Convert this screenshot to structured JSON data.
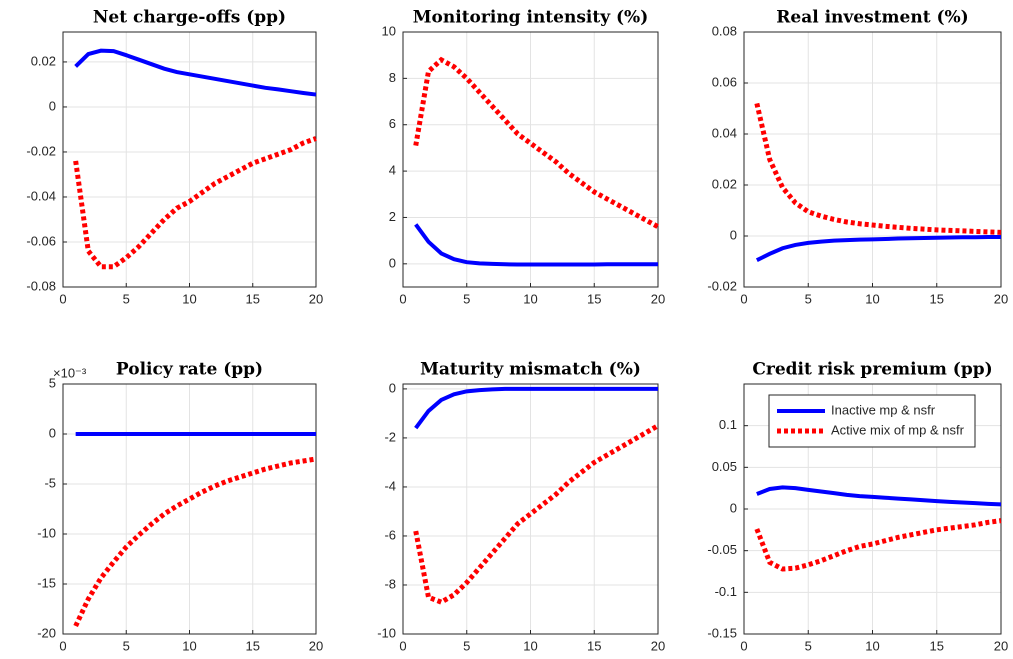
{
  "chart_data": [
    {
      "type": "line",
      "title": "Net charge-offs (pp)",
      "x": [
        1,
        2,
        3,
        4,
        5,
        6,
        7,
        8,
        9,
        10,
        11,
        12,
        13,
        14,
        15,
        16,
        17,
        18,
        19,
        20
      ],
      "series": [
        {
          "color": "#0000ff",
          "style": "solid",
          "values": [
            0.018,
            0.0235,
            0.025,
            0.0248,
            0.023,
            0.021,
            0.019,
            0.017,
            0.0155,
            0.0145,
            0.0135,
            0.0125,
            0.0115,
            0.0105,
            0.0095,
            0.0085,
            0.0078,
            0.007,
            0.0062,
            0.0055
          ]
        },
        {
          "color": "#ff0000",
          "style": "dotted",
          "values": [
            -0.024,
            -0.064,
            -0.071,
            -0.071,
            -0.067,
            -0.062,
            -0.056,
            -0.05,
            -0.045,
            -0.042,
            -0.038,
            -0.034,
            -0.031,
            -0.028,
            -0.025,
            -0.023,
            -0.021,
            -0.019,
            -0.016,
            -0.014
          ]
        }
      ],
      "xlim": [
        0,
        20
      ],
      "xticks": [
        0,
        5,
        10,
        15,
        20
      ],
      "ylim": [
        -0.08,
        0.0333
      ],
      "yticks": [
        -0.08,
        -0.06,
        -0.04,
        -0.02,
        0,
        0.02
      ],
      "grid": true
    },
    {
      "type": "line",
      "title": "Monitoring intensity (%)",
      "x": [
        1,
        2,
        3,
        4,
        5,
        6,
        7,
        8,
        9,
        10,
        11,
        12,
        13,
        14,
        15,
        16,
        17,
        18,
        19,
        20
      ],
      "series": [
        {
          "color": "#0000ff",
          "style": "solid",
          "values": [
            1.7,
            0.95,
            0.45,
            0.2,
            0.07,
            0.02,
            0,
            -0.02,
            -0.03,
            -0.03,
            -0.03,
            -0.03,
            -0.03,
            -0.03,
            -0.03,
            -0.02,
            -0.02,
            -0.02,
            -0.02,
            -0.02
          ]
        },
        {
          "color": "#ff0000",
          "style": "dotted",
          "values": [
            5.1,
            8.3,
            8.8,
            8.5,
            8.0,
            7.4,
            6.8,
            6.2,
            5.6,
            5.2,
            4.8,
            4.4,
            3.9,
            3.5,
            3.1,
            2.8,
            2.5,
            2.2,
            1.9,
            1.6
          ]
        }
      ],
      "xlim": [
        0,
        20
      ],
      "xticks": [
        0,
        5,
        10,
        15,
        20
      ],
      "ylim": [
        -1,
        10
      ],
      "yticks": [
        0,
        2,
        4,
        6,
        8,
        10
      ],
      "grid": true
    },
    {
      "type": "line",
      "title": "Real investment (%)",
      "x": [
        1,
        2,
        3,
        4,
        5,
        6,
        7,
        8,
        9,
        10,
        11,
        12,
        13,
        14,
        15,
        16,
        17,
        18,
        19,
        20
      ],
      "series": [
        {
          "color": "#0000ff",
          "style": "solid",
          "values": [
            -0.0095,
            -0.007,
            -0.0048,
            -0.0035,
            -0.0027,
            -0.0022,
            -0.0018,
            -0.0016,
            -0.0014,
            -0.0013,
            -0.0012,
            -0.001,
            -0.0009,
            -0.0008,
            -0.0007,
            -0.0006,
            -0.0005,
            -0.0005,
            -0.0004,
            -0.0004
          ]
        },
        {
          "color": "#ff0000",
          "style": "dotted",
          "values": [
            0.052,
            0.03,
            0.019,
            0.013,
            0.0095,
            0.0078,
            0.0065,
            0.0055,
            0.0048,
            0.0043,
            0.0038,
            0.0034,
            0.003,
            0.0027,
            0.0024,
            0.0022,
            0.002,
            0.0018,
            0.0016,
            0.0014
          ]
        }
      ],
      "xlim": [
        0,
        20
      ],
      "xticks": [
        0,
        5,
        10,
        15,
        20
      ],
      "ylim": [
        -0.02,
        0.08
      ],
      "yticks": [
        -0.02,
        0,
        0.02,
        0.04,
        0.06,
        0.08
      ],
      "grid": true
    },
    {
      "type": "line",
      "title": "Policy rate (pp)",
      "y_exponent_label": "×10⁻³",
      "x": [
        1,
        2,
        3,
        4,
        5,
        6,
        7,
        8,
        9,
        10,
        11,
        12,
        13,
        14,
        15,
        16,
        17,
        18,
        19,
        20
      ],
      "series": [
        {
          "color": "#0000ff",
          "style": "solid",
          "values": [
            0,
            0,
            0,
            0,
            0,
            0,
            0,
            0,
            0,
            0,
            0,
            0,
            0,
            0,
            0,
            0,
            0,
            0,
            0,
            0
          ]
        },
        {
          "color": "#ff0000",
          "style": "dotted",
          "values": [
            -19.2,
            -16.5,
            -14.4,
            -12.8,
            -11.3,
            -10.1,
            -9.0,
            -8.0,
            -7.2,
            -6.5,
            -5.8,
            -5.2,
            -4.7,
            -4.3,
            -3.9,
            -3.5,
            -3.2,
            -2.9,
            -2.7,
            -2.5
          ]
        }
      ],
      "xlim": [
        0,
        20
      ],
      "xticks": [
        0,
        5,
        10,
        15,
        20
      ],
      "ylim": [
        -20,
        5
      ],
      "yticks": [
        -20,
        -15,
        -10,
        -5,
        0,
        5
      ],
      "grid": true
    },
    {
      "type": "line",
      "title": "Maturity mismatch (%)",
      "x": [
        1,
        2,
        3,
        4,
        5,
        6,
        7,
        8,
        9,
        10,
        11,
        12,
        13,
        14,
        15,
        16,
        17,
        18,
        19,
        20
      ],
      "series": [
        {
          "color": "#0000ff",
          "style": "solid",
          "values": [
            -1.6,
            -0.9,
            -0.45,
            -0.22,
            -0.1,
            -0.05,
            -0.02,
            0,
            0,
            0,
            0,
            0,
            0,
            0,
            0,
            0,
            0,
            0,
            0,
            0
          ]
        },
        {
          "color": "#ff0000",
          "style": "dotted",
          "values": [
            -5.8,
            -8.5,
            -8.7,
            -8.4,
            -7.9,
            -7.3,
            -6.7,
            -6.1,
            -5.5,
            -5.1,
            -4.7,
            -4.3,
            -3.8,
            -3.4,
            -3.0,
            -2.7,
            -2.4,
            -2.1,
            -1.8,
            -1.5
          ]
        }
      ],
      "xlim": [
        0,
        20
      ],
      "xticks": [
        0,
        5,
        10,
        15,
        20
      ],
      "ylim": [
        -10,
        0.2
      ],
      "yticks": [
        -10,
        -8,
        -6,
        -4,
        -2,
        0
      ],
      "grid": true
    },
    {
      "type": "line",
      "title": "Credit risk premium (pp)",
      "x": [
        1,
        2,
        3,
        4,
        5,
        6,
        7,
        8,
        9,
        10,
        11,
        12,
        13,
        14,
        15,
        16,
        17,
        18,
        19,
        20
      ],
      "series": [
        {
          "name": "Inactive mp & nsfr",
          "color": "#0000ff",
          "style": "solid",
          "values": [
            0.018,
            0.024,
            0.026,
            0.025,
            0.023,
            0.021,
            0.019,
            0.017,
            0.0155,
            0.0145,
            0.0135,
            0.0125,
            0.0115,
            0.0105,
            0.0095,
            0.0085,
            0.0078,
            0.007,
            0.0062,
            0.0055
          ]
        },
        {
          "name": "Active mix of mp & nsfr",
          "color": "#ff0000",
          "style": "dotted",
          "values": [
            -0.024,
            -0.064,
            -0.072,
            -0.071,
            -0.067,
            -0.062,
            -0.056,
            -0.05,
            -0.045,
            -0.042,
            -0.038,
            -0.034,
            -0.031,
            -0.028,
            -0.025,
            -0.023,
            -0.021,
            -0.019,
            -0.016,
            -0.014
          ]
        }
      ],
      "xlim": [
        0,
        20
      ],
      "xticks": [
        0,
        5,
        10,
        15,
        20
      ],
      "ylim": [
        -0.15,
        0.15
      ],
      "yticks": [
        -0.15,
        -0.1,
        -0.05,
        0,
        0.05,
        0.1
      ],
      "grid": true,
      "legend": "northeast"
    }
  ]
}
